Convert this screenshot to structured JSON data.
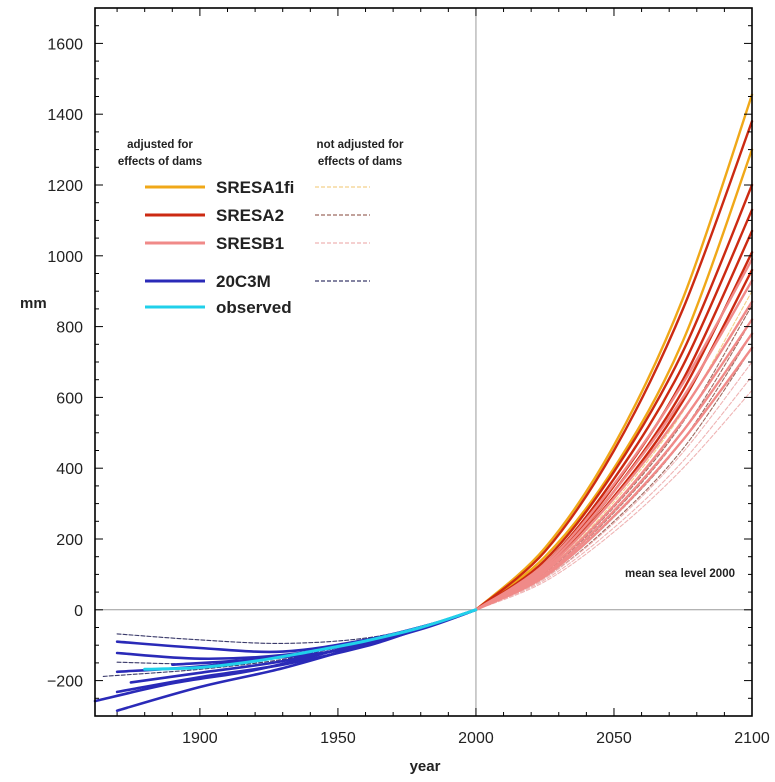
{
  "chart_data": {
    "type": "line",
    "xlabel": "year",
    "ylabel": "mm",
    "xlim": [
      1862,
      2100
    ],
    "ylim": [
      -300,
      1700
    ],
    "x_ticks": [
      1900,
      1950,
      2000,
      2050,
      2100
    ],
    "y_ticks": [
      -200,
      0,
      200,
      400,
      600,
      800,
      1000,
      1200,
      1400,
      1600
    ],
    "grid": false,
    "reference_lines": {
      "x": 2000,
      "y": 0
    },
    "annotation": "mean sea level 2000",
    "legend": {
      "placement": "upper-left",
      "header_adjusted": [
        "adjusted for",
        "effects of dams"
      ],
      "header_not_adjusted": [
        "not adjusted for",
        "effects of dams"
      ],
      "entries": [
        {
          "label": "SRESA1fi",
          "color": "#f0a818",
          "dashed_color": "#f3d08a"
        },
        {
          "label": "SRESA2",
          "color": "#cc2a12",
          "dashed_color": "#9e6a60"
        },
        {
          "label": "SRESB1",
          "color": "#f08a88",
          "dashed_color": "#efb4b4"
        },
        {
          "label": "20C3M",
          "color": "#2a2ab8",
          "dashed_color": "#3a3a6a"
        },
        {
          "label": "observed",
          "color": "#20d0ea",
          "dashed_color": ""
        }
      ]
    },
    "series": [
      {
        "group": "20C3M",
        "style": "solid",
        "x": [
          1870,
          1900,
          1930,
          1960,
          1980,
          2000
        ],
        "y": [
          -285,
          -218,
          -165,
          -98,
          -52,
          0
        ]
      },
      {
        "group": "20C3M",
        "style": "solid",
        "x": [
          1862,
          1890,
          1920,
          1950,
          1980,
          2000
        ],
        "y": [
          -258,
          -208,
          -170,
          -113,
          -52,
          0
        ]
      },
      {
        "group": "20C3M",
        "style": "solid",
        "x": [
          1870,
          1900,
          1930,
          1960,
          1980,
          2000
        ],
        "y": [
          -232,
          -190,
          -155,
          -103,
          -52,
          0
        ]
      },
      {
        "group": "20C3M",
        "style": "solid",
        "x": [
          1875,
          1900,
          1930,
          1960,
          1985,
          2000
        ],
        "y": [
          -205,
          -178,
          -145,
          -95,
          -40,
          0
        ]
      },
      {
        "group": "20C3M",
        "style": "solid",
        "x": [
          1870,
          1900,
          1930,
          1960,
          1985,
          2000
        ],
        "y": [
          -175,
          -160,
          -132,
          -88,
          -38,
          0
        ]
      },
      {
        "group": "20C3M",
        "style": "solid",
        "x": [
          1870,
          1900,
          1930,
          1960,
          1985,
          2000
        ],
        "y": [
          -122,
          -138,
          -128,
          -90,
          -40,
          0
        ]
      },
      {
        "group": "20C3M",
        "style": "solid",
        "x": [
          1870,
          1900,
          1930,
          1960,
          1985,
          2000
        ],
        "y": [
          -90,
          -108,
          -118,
          -85,
          -38,
          0
        ]
      },
      {
        "group": "20C3M",
        "style": "solid",
        "x": [
          1890,
          1920,
          1950,
          1980,
          2000
        ],
        "y": [
          -155,
          -140,
          -115,
          -55,
          0
        ]
      },
      {
        "group": "20C3M",
        "style": "dashed",
        "x": [
          1870,
          1900,
          1930,
          1960,
          1985,
          2000
        ],
        "y": [
          -68,
          -85,
          -95,
          -80,
          -38,
          0
        ]
      },
      {
        "group": "20C3M",
        "style": "dashed",
        "x": [
          1865,
          1900,
          1930,
          1960,
          1985,
          2000
        ],
        "y": [
          -188,
          -168,
          -140,
          -94,
          -40,
          0
        ]
      },
      {
        "group": "20C3M",
        "style": "dashed",
        "x": [
          1870,
          1900,
          1930,
          1960,
          1985,
          2000
        ],
        "y": [
          -148,
          -152,
          -135,
          -90,
          -40,
          0
        ]
      },
      {
        "group": "observed",
        "style": "solid",
        "x": [
          1880,
          1900,
          1920,
          1940,
          1960,
          1980,
          2000
        ],
        "y": [
          -168,
          -163,
          -145,
          -118,
          -88,
          -50,
          0
        ]
      },
      {
        "group": "SRESA1fi",
        "style": "solid",
        "x": [
          2000,
          2025,
          2050,
          2075,
          2100
        ],
        "y": [
          0,
          175,
          465,
          880,
          1455
        ]
      },
      {
        "group": "SRESA1fi",
        "style": "solid",
        "x": [
          2000,
          2025,
          2050,
          2075,
          2100
        ],
        "y": [
          0,
          150,
          400,
          760,
          1300
        ]
      },
      {
        "group": "SRESA2",
        "style": "solid",
        "x": [
          2000,
          2025,
          2050,
          2075,
          2100
        ],
        "y": [
          0,
          165,
          450,
          850,
          1380
        ]
      },
      {
        "group": "SRESA2",
        "style": "solid",
        "x": [
          2000,
          2025,
          2050,
          2075,
          2100
        ],
        "y": [
          0,
          140,
          390,
          730,
          1200
        ]
      },
      {
        "group": "SRESA2",
        "style": "solid",
        "x": [
          2000,
          2025,
          2050,
          2075,
          2100
        ],
        "y": [
          0,
          130,
          370,
          690,
          1130
        ]
      },
      {
        "group": "SRESA2",
        "style": "solid",
        "x": [
          2000,
          2025,
          2050,
          2075,
          2100
        ],
        "y": [
          0,
          125,
          350,
          650,
          1070
        ]
      },
      {
        "group": "SRESA2",
        "style": "solid",
        "x": [
          2000,
          2025,
          2050,
          2075,
          2100
        ],
        "y": [
          0,
          120,
          335,
          620,
          1010
        ]
      },
      {
        "group": "SRESA2",
        "style": "solid",
        "x": [
          2000,
          2025,
          2050,
          2075,
          2100
        ],
        "y": [
          0,
          115,
          320,
          590,
          960
        ]
      },
      {
        "group": "SRESB1",
        "style": "solid",
        "x": [
          2000,
          2025,
          2050,
          2075,
          2100
        ],
        "y": [
          0,
          130,
          355,
          640,
          990
        ]
      },
      {
        "group": "SRESB1",
        "style": "solid",
        "x": [
          2000,
          2025,
          2050,
          2075,
          2100
        ],
        "y": [
          0,
          122,
          335,
          600,
          930
        ]
      },
      {
        "group": "SRESB1",
        "style": "solid",
        "x": [
          2000,
          2025,
          2050,
          2075,
          2100
        ],
        "y": [
          0,
          115,
          315,
          565,
          870
        ]
      },
      {
        "group": "SRESB1",
        "style": "solid",
        "x": [
          2000,
          2025,
          2050,
          2075,
          2100
        ],
        "y": [
          0,
          108,
          295,
          535,
          820
        ]
      },
      {
        "group": "SRESB1",
        "style": "solid",
        "x": [
          2000,
          2025,
          2050,
          2075,
          2100
        ],
        "y": [
          0,
          100,
          280,
          505,
          780
        ]
      },
      {
        "group": "SRESB1",
        "style": "solid",
        "x": [
          2000,
          2025,
          2050,
          2075,
          2100
        ],
        "y": [
          0,
          95,
          265,
          480,
          740
        ]
      },
      {
        "group": "SRESA2",
        "style": "dashed",
        "x": [
          2000,
          2025,
          2050,
          2075,
          2100
        ],
        "y": [
          0,
          105,
          290,
          530,
          860
        ]
      },
      {
        "group": "SRESA2",
        "style": "dashed",
        "x": [
          2000,
          2025,
          2050,
          2075,
          2100
        ],
        "y": [
          0,
          100,
          275,
          505,
          820
        ]
      },
      {
        "group": "SRESA2",
        "style": "dashed",
        "x": [
          2000,
          2025,
          2050,
          2075,
          2100
        ],
        "y": [
          0,
          95,
          262,
          480,
          780
        ]
      },
      {
        "group": "SRESA2",
        "style": "dashed",
        "x": [
          2000,
          2025,
          2050,
          2075,
          2100
        ],
        "y": [
          0,
          90,
          250,
          455,
          740
        ]
      },
      {
        "group": "SRESB1",
        "style": "dashed",
        "x": [
          2000,
          2025,
          2050,
          2075,
          2100
        ],
        "y": [
          0,
          90,
          245,
          445,
          700
        ]
      },
      {
        "group": "SRESB1",
        "style": "dashed",
        "x": [
          2000,
          2025,
          2050,
          2075,
          2100
        ],
        "y": [
          0,
          85,
          232,
          420,
          660
        ]
      },
      {
        "group": "SRESB1",
        "style": "dashed",
        "x": [
          2000,
          2025,
          2050,
          2075,
          2100
        ],
        "y": [
          0,
          80,
          220,
          400,
          620
        ]
      },
      {
        "group": "SRESA1fi",
        "style": "dashed",
        "x": [
          2000,
          2025,
          2050,
          2075,
          2100
        ],
        "y": [
          0,
          110,
          305,
          560,
          900
        ]
      }
    ]
  }
}
